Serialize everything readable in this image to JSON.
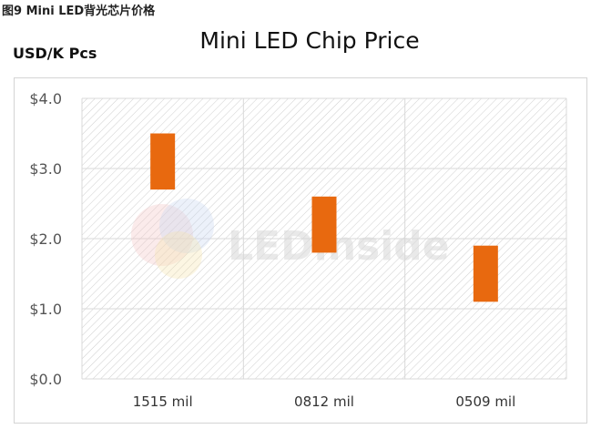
{
  "caption": "图9 Mini LED背光芯片价格",
  "y_unit": "USD/K Pcs",
  "watermark": "LEDinside",
  "colors": {
    "bar": "#E8690F",
    "grid": "#d9d9d9",
    "hatch": "#cfcfcf"
  },
  "chart_data": {
    "type": "bar",
    "title": "Mini LED Chip Price",
    "ylabel": "USD/K Pcs",
    "xlabel": "",
    "categories": [
      "1515 mil",
      "0812 mil",
      "0509 mil"
    ],
    "series": [
      {
        "low": [
          2.7,
          1.8,
          1.1
        ],
        "high": [
          3.5,
          2.6,
          1.9
        ]
      }
    ],
    "ylim": [
      0,
      4
    ],
    "yticks": [
      0,
      1,
      2,
      3,
      4
    ],
    "ytick_labels": [
      "$0.0",
      "$1.0",
      "$2.0",
      "$3.0",
      "$4.0"
    ],
    "grid": true
  }
}
